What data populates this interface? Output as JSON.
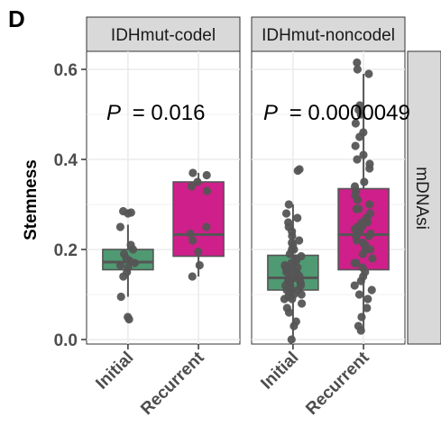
{
  "figure": {
    "panel_letter": "D",
    "row_strip": "mDNAsi"
  },
  "colors": {
    "Initial": "#4f9a72",
    "Recurrent": "#cf1f8a",
    "point": "#555555",
    "strip_fill": "#d9d9d9",
    "grid": "#ebebeb"
  },
  "chart_data": {
    "type": "box",
    "ylabel": "Stemness",
    "xlabel": "",
    "ylim": [
      -0.01,
      0.64
    ],
    "yticks": [
      0.0,
      0.2,
      0.4,
      0.6
    ],
    "ytick_labels": [
      "0.0",
      "0.2",
      "0.4",
      "0.6"
    ],
    "categories": [
      "Initial",
      "Recurrent"
    ],
    "grid": true,
    "legend": "none",
    "panels": [
      {
        "facet": "IDHmut-codel",
        "p_label": "P",
        "p_value": "= 0.016",
        "groups": [
          {
            "category": "Initial",
            "box": {
              "min": 0.095,
              "q1": 0.155,
              "median": 0.172,
              "q3": 0.2,
              "max": 0.255
            },
            "points": [
              0.05,
              0.045,
              0.095,
              0.14,
              0.15,
              0.16,
              0.165,
              0.17,
              0.175,
              0.18,
              0.19,
              0.2,
              0.21,
              0.25,
              0.28,
              0.285,
              0.282
            ]
          },
          {
            "category": "Recurrent",
            "box": {
              "min": 0.14,
              "q1": 0.185,
              "median": 0.233,
              "q3": 0.35,
              "max": 0.37
            },
            "points": [
              0.14,
              0.165,
              0.195,
              0.22,
              0.235,
              0.25,
              0.33,
              0.34,
              0.35,
              0.365,
              0.37
            ]
          }
        ]
      },
      {
        "facet": "IDHmut-noncodel",
        "p_label": "P",
        "p_value": "= 0.0000049",
        "groups": [
          {
            "category": "Initial",
            "box": {
              "min": 0.0,
              "q1": 0.11,
              "median": 0.137,
              "q3": 0.187,
              "max": 0.3
            },
            "points": [
              0.0,
              0.03,
              0.04,
              0.06,
              0.07,
              0.08,
              0.09,
              0.095,
              0.1,
              0.105,
              0.11,
              0.11,
              0.115,
              0.12,
              0.12,
              0.125,
              0.13,
              0.13,
              0.135,
              0.135,
              0.14,
              0.14,
              0.145,
              0.15,
              0.15,
              0.155,
              0.16,
              0.16,
              0.165,
              0.17,
              0.175,
              0.18,
              0.185,
              0.19,
              0.2,
              0.21,
              0.215,
              0.22,
              0.23,
              0.24,
              0.25,
              0.26,
              0.27,
              0.28,
              0.3,
              0.375,
              0.378,
              0.1,
              0.12,
              0.14,
              0.16,
              0.18,
              0.2,
              0.09,
              0.13
            ]
          },
          {
            "category": "Recurrent",
            "box": {
              "min": 0.02,
              "q1": 0.155,
              "median": 0.233,
              "q3": 0.335,
              "max": 0.59
            },
            "points": [
              0.02,
              0.03,
              0.05,
              0.07,
              0.09,
              0.1,
              0.11,
              0.12,
              0.13,
              0.15,
              0.16,
              0.17,
              0.18,
              0.19,
              0.2,
              0.21,
              0.215,
              0.22,
              0.23,
              0.235,
              0.24,
              0.245,
              0.25,
              0.26,
              0.265,
              0.27,
              0.28,
              0.29,
              0.3,
              0.31,
              0.32,
              0.33,
              0.34,
              0.35,
              0.38,
              0.39,
              0.4,
              0.41,
              0.43,
              0.45,
              0.46,
              0.48,
              0.5,
              0.51,
              0.52,
              0.59,
              0.615,
              0.6,
              0.17,
              0.2,
              0.23,
              0.26,
              0.29,
              0.14,
              0.25
            ]
          }
        ]
      }
    ]
  }
}
